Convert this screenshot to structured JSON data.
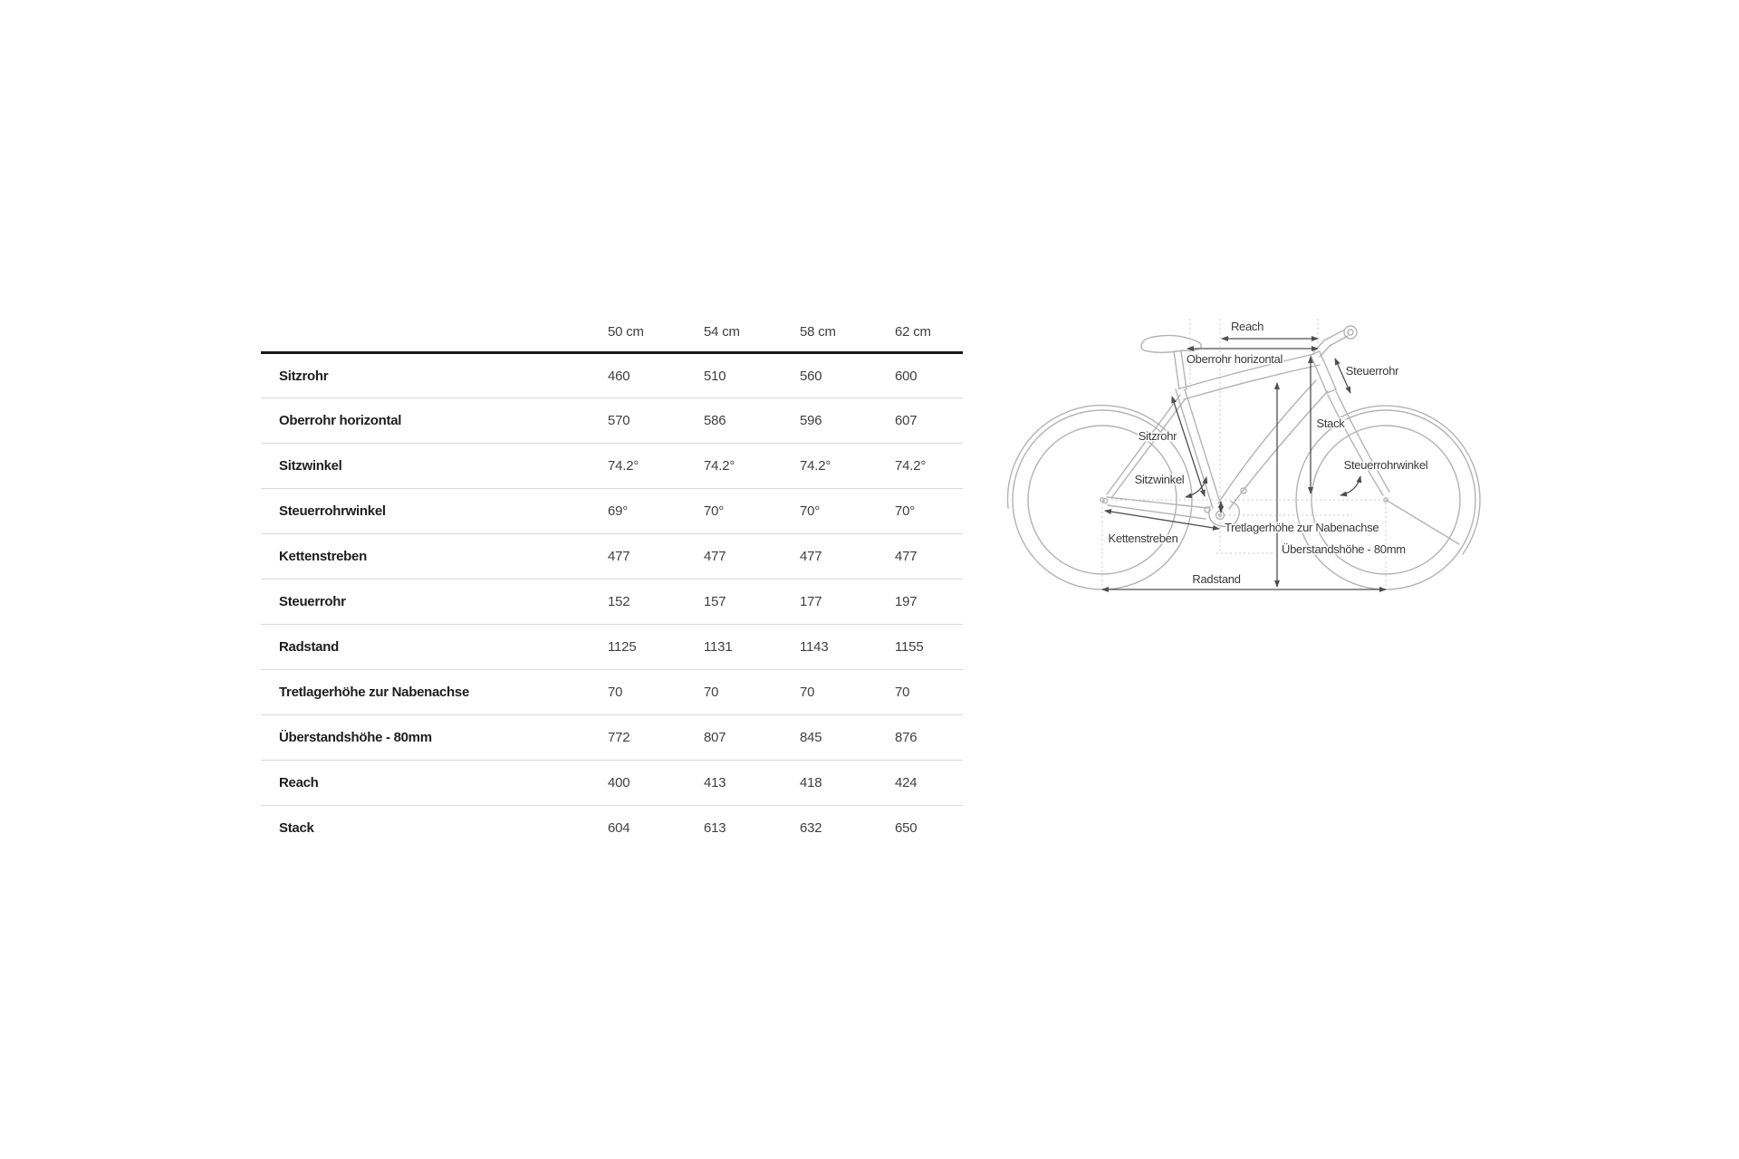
{
  "page": {
    "background": "#ffffff"
  },
  "table": {
    "size_columns": [
      "50 cm",
      "54 cm",
      "58 cm",
      "62 cm"
    ],
    "rows": [
      {
        "label": "Sitzrohr",
        "values": [
          "460",
          "510",
          "560",
          "600"
        ]
      },
      {
        "label": "Oberrohr horizontal",
        "values": [
          "570",
          "586",
          "596",
          "607"
        ]
      },
      {
        "label": "Sitzwinkel",
        "values": [
          "74.2°",
          "74.2°",
          "74.2°",
          "74.2°"
        ]
      },
      {
        "label": "Steuerrohrwinkel",
        "values": [
          "69°",
          "70°",
          "70°",
          "70°"
        ]
      },
      {
        "label": "Kettenstreben",
        "values": [
          "477",
          "477",
          "477",
          "477"
        ]
      },
      {
        "label": "Steuerrohr",
        "values": [
          "152",
          "157",
          "177",
          "197"
        ]
      },
      {
        "label": "Radstand",
        "values": [
          "1125",
          "1131",
          "1143",
          "1155"
        ]
      },
      {
        "label": "Tretlagerhöhe zur Nabenachse",
        "values": [
          "70",
          "70",
          "70",
          "70"
        ]
      },
      {
        "label": "Überstandshöhe - 80mm",
        "values": [
          "772",
          "807",
          "845",
          "876"
        ]
      },
      {
        "label": "Reach",
        "values": [
          "400",
          "413",
          "418",
          "424"
        ]
      },
      {
        "label": "Stack",
        "values": [
          "604",
          "613",
          "632",
          "650"
        ]
      }
    ]
  },
  "diagram": {
    "labels": {
      "reach": "Reach",
      "oberrohr_horizontal": "Oberrohr horizontal",
      "steuerrohr": "Steuerrohr",
      "sitzrohr": "Sitzrohr",
      "stack": "Stack",
      "steuerrohrwinkel": "Steuerrohrwinkel",
      "sitzwinkel": "Sitzwinkel",
      "tretlagerhoehe": "Tretlagerhöhe zur Nabenachse",
      "kettenstreben": "Kettenstreben",
      "ueberstandshoehe": "Überstandshöhe - 80mm",
      "radstand": "Radstand"
    },
    "colors": {
      "bike_line": "#b3b3b3",
      "dimension_line": "#4f4f4f",
      "label_text": "#3a3a3a",
      "guide_dotted": "#c9c9c9",
      "table_header_border": "#191919",
      "table_row_border": "#dadada"
    }
  }
}
